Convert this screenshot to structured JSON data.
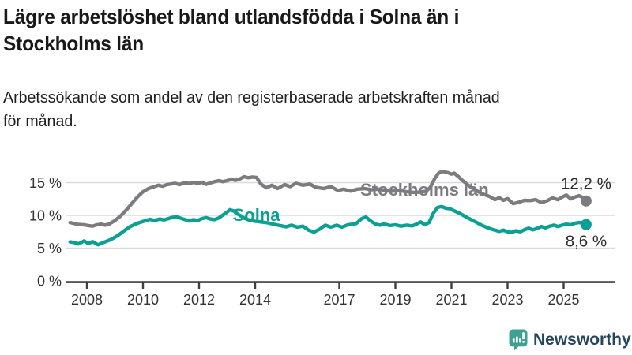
{
  "header": {
    "title_line1": "Lägre arbetslöshet bland utlandsfödda i Solna än i",
    "title_line2": "Stockholms län",
    "subtitle_line1": "Arbetssökande som andel av den registerbaserade arbetskraften månad",
    "subtitle_line2": "för månad."
  },
  "chart_data": {
    "type": "line",
    "unit": "%",
    "title": "Lägre arbetslöshet bland utlandsfödda i Solna än i Stockholms län",
    "xlabel": "",
    "ylabel": "",
    "xlim": [
      2007.3,
      2026.1
    ],
    "ylim": [
      0,
      18
    ],
    "grid": true,
    "x_ticks": [
      {
        "value": 2008,
        "label": "2008"
      },
      {
        "value": 2010,
        "label": "2010"
      },
      {
        "value": 2012,
        "label": "2012"
      },
      {
        "value": 2014,
        "label": "2014"
      },
      {
        "value": 2017,
        "label": "2017"
      },
      {
        "value": 2019,
        "label": "2019"
      },
      {
        "value": 2021,
        "label": "2021"
      },
      {
        "value": 2023,
        "label": "2023"
      },
      {
        "value": 2025,
        "label": "2025"
      }
    ],
    "y_ticks": [
      {
        "value": 0,
        "label": "0 %"
      },
      {
        "value": 5,
        "label": "5 %"
      },
      {
        "value": 10,
        "label": "10 %"
      },
      {
        "value": 15,
        "label": "15 %"
      }
    ],
    "colors": {
      "grid": "#dadada",
      "axis": "#3e3e40",
      "tick_label": "#333333",
      "end_label": "#2c2c2c"
    },
    "series": [
      {
        "name": "Stockholms län",
        "color": "#7b7b80",
        "end_label": "12,2 %",
        "end_value": 12.2,
        "end_label_side": "above",
        "label_pos": {
          "year": 2017.75,
          "value": 13.0
        },
        "points": [
          [
            2007.4,
            8.9
          ],
          [
            2007.55,
            8.75
          ],
          [
            2007.7,
            8.6
          ],
          [
            2007.9,
            8.55
          ],
          [
            2008.05,
            8.45
          ],
          [
            2008.2,
            8.35
          ],
          [
            2008.35,
            8.55
          ],
          [
            2008.5,
            8.65
          ],
          [
            2008.65,
            8.5
          ],
          [
            2008.8,
            8.7
          ],
          [
            2009.0,
            9.2
          ],
          [
            2009.2,
            9.9
          ],
          [
            2009.4,
            10.8
          ],
          [
            2009.6,
            11.8
          ],
          [
            2009.8,
            12.8
          ],
          [
            2010.0,
            13.6
          ],
          [
            2010.2,
            14.1
          ],
          [
            2010.4,
            14.4
          ],
          [
            2010.55,
            14.6
          ],
          [
            2010.7,
            14.45
          ],
          [
            2010.85,
            14.7
          ],
          [
            2011.0,
            14.8
          ],
          [
            2011.15,
            14.9
          ],
          [
            2011.3,
            14.7
          ],
          [
            2011.5,
            15.0
          ],
          [
            2011.65,
            14.85
          ],
          [
            2011.8,
            15.05
          ],
          [
            2011.95,
            14.9
          ],
          [
            2012.1,
            15.05
          ],
          [
            2012.25,
            14.75
          ],
          [
            2012.4,
            14.95
          ],
          [
            2012.55,
            15.15
          ],
          [
            2012.7,
            15.3
          ],
          [
            2012.85,
            15.15
          ],
          [
            2013.0,
            15.3
          ],
          [
            2013.15,
            15.5
          ],
          [
            2013.3,
            15.35
          ],
          [
            2013.45,
            15.55
          ],
          [
            2013.6,
            15.9
          ],
          [
            2013.75,
            15.75
          ],
          [
            2013.9,
            15.85
          ],
          [
            2014.05,
            15.8
          ],
          [
            2014.2,
            14.8
          ],
          [
            2014.4,
            14.2
          ],
          [
            2014.6,
            14.6
          ],
          [
            2014.8,
            14.1
          ],
          [
            2015.05,
            14.7
          ],
          [
            2015.25,
            14.4
          ],
          [
            2015.45,
            14.9
          ],
          [
            2015.7,
            14.6
          ],
          [
            2015.95,
            14.8
          ],
          [
            2016.15,
            14.3
          ],
          [
            2016.45,
            14.1
          ],
          [
            2016.7,
            14.4
          ],
          [
            2016.95,
            13.8
          ],
          [
            2017.15,
            14.0
          ],
          [
            2017.4,
            13.7
          ],
          [
            2017.65,
            14.0
          ],
          [
            2017.9,
            14.1
          ],
          [
            2018.15,
            13.9
          ],
          [
            2018.4,
            14.0
          ],
          [
            2018.65,
            13.8
          ],
          [
            2018.9,
            13.7
          ],
          [
            2019.15,
            13.8
          ],
          [
            2019.4,
            13.6
          ],
          [
            2019.65,
            13.5
          ],
          [
            2019.9,
            13.55
          ],
          [
            2020.1,
            13.7
          ],
          [
            2020.25,
            14.3
          ],
          [
            2020.4,
            15.6
          ],
          [
            2020.55,
            16.5
          ],
          [
            2020.7,
            16.7
          ],
          [
            2020.85,
            16.55
          ],
          [
            2021.0,
            16.3
          ],
          [
            2021.1,
            16.45
          ],
          [
            2021.25,
            15.9
          ],
          [
            2021.4,
            15.3
          ],
          [
            2021.6,
            14.6
          ],
          [
            2021.8,
            14.0
          ],
          [
            2022.0,
            13.5
          ],
          [
            2022.15,
            13.2
          ],
          [
            2022.35,
            12.9
          ],
          [
            2022.55,
            12.4
          ],
          [
            2022.7,
            12.7
          ],
          [
            2022.85,
            12.3
          ],
          [
            2023.0,
            12.55
          ],
          [
            2023.2,
            11.8
          ],
          [
            2023.4,
            12.0
          ],
          [
            2023.6,
            12.3
          ],
          [
            2023.8,
            12.25
          ],
          [
            2024.0,
            12.4
          ],
          [
            2024.2,
            11.95
          ],
          [
            2024.4,
            12.2
          ],
          [
            2024.6,
            12.65
          ],
          [
            2024.8,
            12.4
          ],
          [
            2024.95,
            12.8
          ],
          [
            2025.1,
            13.1
          ],
          [
            2025.25,
            12.5
          ],
          [
            2025.4,
            12.8
          ],
          [
            2025.55,
            13.0
          ],
          [
            2025.7,
            12.7
          ],
          [
            2025.8,
            12.2
          ]
        ]
      },
      {
        "name": "Solna",
        "color": "#0aa093",
        "end_label": "8,6 %",
        "end_value": 8.6,
        "end_label_side": "below",
        "label_pos": {
          "year": 2013.2,
          "value": 9.15
        },
        "points": [
          [
            2007.4,
            5.95
          ],
          [
            2007.55,
            5.85
          ],
          [
            2007.7,
            5.65
          ],
          [
            2007.9,
            6.1
          ],
          [
            2008.05,
            5.7
          ],
          [
            2008.2,
            6.0
          ],
          [
            2008.4,
            5.5
          ],
          [
            2008.55,
            5.8
          ],
          [
            2008.7,
            6.05
          ],
          [
            2008.85,
            6.3
          ],
          [
            2009.1,
            6.9
          ],
          [
            2009.35,
            7.7
          ],
          [
            2009.55,
            8.3
          ],
          [
            2009.8,
            8.8
          ],
          [
            2010.1,
            9.2
          ],
          [
            2010.25,
            9.4
          ],
          [
            2010.4,
            9.2
          ],
          [
            2010.6,
            9.45
          ],
          [
            2010.75,
            9.3
          ],
          [
            2010.9,
            9.5
          ],
          [
            2011.05,
            9.7
          ],
          [
            2011.2,
            9.8
          ],
          [
            2011.35,
            9.55
          ],
          [
            2011.5,
            9.35
          ],
          [
            2011.65,
            9.15
          ],
          [
            2011.8,
            9.35
          ],
          [
            2011.95,
            9.2
          ],
          [
            2012.1,
            9.5
          ],
          [
            2012.25,
            9.65
          ],
          [
            2012.4,
            9.45
          ],
          [
            2012.55,
            9.35
          ],
          [
            2012.7,
            9.6
          ],
          [
            2012.85,
            10.05
          ],
          [
            2013.0,
            10.5
          ],
          [
            2013.1,
            10.85
          ],
          [
            2013.25,
            10.65
          ],
          [
            2013.4,
            10.15
          ],
          [
            2013.6,
            9.6
          ],
          [
            2013.8,
            9.25
          ],
          [
            2014.0,
            9.1
          ],
          [
            2014.2,
            9.0
          ],
          [
            2014.45,
            8.85
          ],
          [
            2014.75,
            8.55
          ],
          [
            2014.95,
            8.4
          ],
          [
            2015.1,
            8.25
          ],
          [
            2015.3,
            8.5
          ],
          [
            2015.5,
            8.2
          ],
          [
            2015.7,
            8.35
          ],
          [
            2015.9,
            7.75
          ],
          [
            2016.1,
            7.45
          ],
          [
            2016.3,
            7.9
          ],
          [
            2016.5,
            8.5
          ],
          [
            2016.7,
            8.2
          ],
          [
            2016.9,
            8.5
          ],
          [
            2017.1,
            8.2
          ],
          [
            2017.3,
            8.55
          ],
          [
            2017.6,
            8.75
          ],
          [
            2017.8,
            9.5
          ],
          [
            2017.95,
            9.75
          ],
          [
            2018.1,
            9.2
          ],
          [
            2018.3,
            8.65
          ],
          [
            2018.45,
            8.5
          ],
          [
            2018.6,
            8.7
          ],
          [
            2018.8,
            8.45
          ],
          [
            2019.0,
            8.55
          ],
          [
            2019.2,
            8.35
          ],
          [
            2019.4,
            8.5
          ],
          [
            2019.6,
            8.4
          ],
          [
            2019.75,
            8.65
          ],
          [
            2019.9,
            9.0
          ],
          [
            2020.05,
            8.55
          ],
          [
            2020.2,
            8.9
          ],
          [
            2020.35,
            10.3
          ],
          [
            2020.5,
            11.2
          ],
          [
            2020.65,
            11.35
          ],
          [
            2020.8,
            11.1
          ],
          [
            2020.95,
            11.0
          ],
          [
            2021.1,
            10.7
          ],
          [
            2021.3,
            10.3
          ],
          [
            2021.5,
            9.8
          ],
          [
            2021.7,
            9.35
          ],
          [
            2021.9,
            8.9
          ],
          [
            2022.1,
            8.45
          ],
          [
            2022.3,
            8.1
          ],
          [
            2022.5,
            7.8
          ],
          [
            2022.7,
            7.55
          ],
          [
            2022.85,
            7.75
          ],
          [
            2023.0,
            7.5
          ],
          [
            2023.15,
            7.4
          ],
          [
            2023.3,
            7.65
          ],
          [
            2023.45,
            7.5
          ],
          [
            2023.6,
            7.8
          ],
          [
            2023.75,
            8.05
          ],
          [
            2023.9,
            7.8
          ],
          [
            2024.05,
            8.0
          ],
          [
            2024.2,
            8.3
          ],
          [
            2024.35,
            8.1
          ],
          [
            2024.5,
            8.35
          ],
          [
            2024.65,
            8.5
          ],
          [
            2024.8,
            8.3
          ],
          [
            2024.95,
            8.5
          ],
          [
            2025.1,
            8.65
          ],
          [
            2025.25,
            8.55
          ],
          [
            2025.4,
            8.8
          ],
          [
            2025.55,
            8.9
          ],
          [
            2025.7,
            8.85
          ],
          [
            2025.8,
            8.6
          ]
        ]
      }
    ]
  },
  "footer": {
    "brand": "Newsworthy",
    "brand_color": "#26465c",
    "logo_icon": "bar-chart-speech-bubble",
    "logo_color": "#3fa091"
  }
}
